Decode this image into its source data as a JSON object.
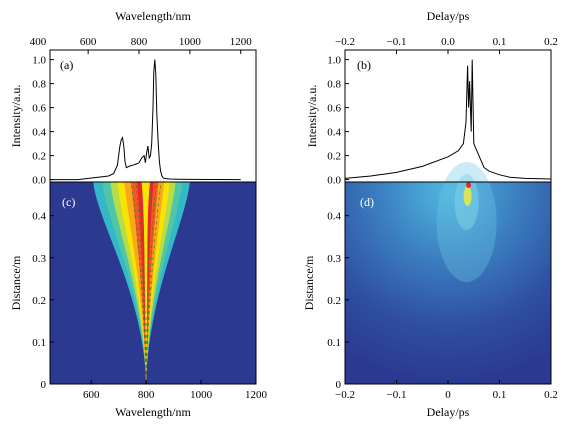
{
  "chart_data": [
    {
      "panel": "(a)",
      "type": "line",
      "xlabel": "Wavelength/nm",
      "ylabel": "Intensity/a.u.",
      "xlim": [
        450,
        1260
      ],
      "ylim": [
        -0.02,
        1.08
      ],
      "x_ticks": [
        "400",
        "600",
        "800",
        "1000",
        "1200"
      ],
      "y_ticks": [
        "0.0",
        "0.2",
        "0.4",
        "0.6",
        "0.8",
        "1.0"
      ],
      "series": [
        {
          "x": [
            450,
            560,
            600,
            640,
            680,
            700,
            715,
            725,
            730,
            735,
            740,
            745,
            750,
            760,
            775,
            790,
            800,
            810,
            820,
            825,
            830,
            835,
            840,
            845,
            850,
            855,
            858,
            862,
            866,
            870,
            875,
            880,
            885,
            890,
            895,
            900,
            920,
            960,
            1000,
            1100,
            1200
          ],
          "y": [
            0.0,
            0.0,
            0.01,
            0.02,
            0.03,
            0.05,
            0.12,
            0.28,
            0.33,
            0.35,
            0.28,
            0.15,
            0.1,
            0.11,
            0.12,
            0.13,
            0.14,
            0.18,
            0.2,
            0.14,
            0.22,
            0.28,
            0.18,
            0.2,
            0.3,
            0.6,
            0.9,
            1.0,
            0.88,
            0.55,
            0.32,
            0.15,
            0.07,
            0.03,
            0.015,
            0.01,
            0.005,
            0.003,
            0.002,
            0.001,
            0.0
          ]
        }
      ]
    },
    {
      "panel": "(b)",
      "type": "line",
      "xlabel": "Delay/ps",
      "ylabel": "Intensity/a.u.",
      "xlim": [
        -0.2,
        0.2
      ],
      "ylim": [
        -0.02,
        1.08
      ],
      "x_ticks": [
        "−0.2",
        "−0.1",
        "0.0",
        "0.1",
        "0.2"
      ],
      "y_ticks": [
        "0.0",
        "0.2",
        "0.4",
        "0.6",
        "0.8",
        "1.0"
      ],
      "series": [
        {
          "x": [
            -0.2,
            -0.15,
            -0.1,
            -0.05,
            0.0,
            0.02,
            0.03,
            0.035,
            0.038,
            0.04,
            0.042,
            0.045,
            0.047,
            0.05,
            0.055,
            0.06,
            0.07,
            0.08,
            0.1,
            0.12,
            0.15,
            0.2
          ],
          "y": [
            0.01,
            0.03,
            0.06,
            0.11,
            0.19,
            0.24,
            0.3,
            0.48,
            0.95,
            0.6,
            0.82,
            0.4,
            1.0,
            0.3,
            0.25,
            0.2,
            0.1,
            0.07,
            0.04,
            0.02,
            0.01,
            0.005
          ]
        }
      ]
    },
    {
      "panel": "(c)",
      "type": "heatmap",
      "xlabel": "Wavelength/nm",
      "ylabel": "Distance/m",
      "xlim": [
        450,
        1200
      ],
      "ylim": [
        0,
        0.48
      ],
      "x_ticks": [
        "600",
        "800",
        "1000",
        "1200"
      ],
      "y_ticks": [
        "0",
        "0.1",
        "0.2",
        "0.3",
        "0.4"
      ],
      "center_wavelength_nm": 800,
      "max_distance_m": 0.48
    },
    {
      "panel": "(d)",
      "type": "heatmap",
      "xlabel": "Delay/ps",
      "ylabel": "Distance/m",
      "xlim": [
        -0.2,
        0.2
      ],
      "ylim": [
        0,
        0.48
      ],
      "x_ticks": [
        "−0.2",
        "−0.1",
        "0",
        "0.1",
        "0.2"
      ],
      "y_ticks": [
        "0",
        "0.1",
        "0.2",
        "0.3",
        "0.4"
      ],
      "pulse_peak_delay_ps": 0.04
    }
  ],
  "colors": {
    "background_field": "#2b3990",
    "hot": "#e9262a",
    "warm": "#f7e400",
    "mid": "#34b8c8"
  }
}
